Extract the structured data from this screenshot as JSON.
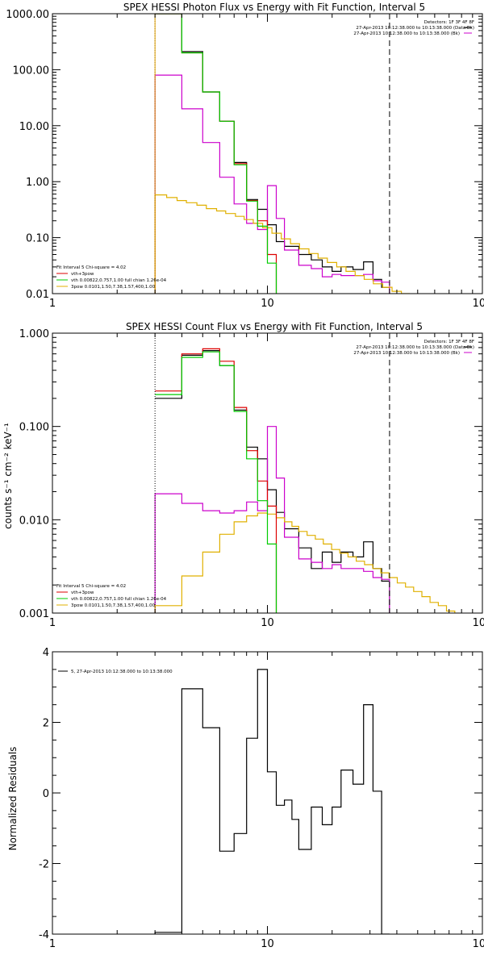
{
  "chart_data": [
    {
      "type": "line",
      "title": "SPEX HESSI Photon Flux vs Energy with Fit Function, Interval 5",
      "xscale": "log",
      "yscale": "log",
      "xlim": [
        1,
        100
      ],
      "ylim": [
        0.01,
        1000
      ],
      "x_tick_labels": [
        "1",
        "10",
        "100"
      ],
      "y_tick_labels": [
        "0.01",
        "0.10",
        "1.00",
        "10.00",
        "100.00",
        "1000.00"
      ],
      "ylabel": "",
      "xlabel": "",
      "vlines": [
        {
          "x": 3.0,
          "style": "dotted",
          "color": "#000000"
        },
        {
          "x": 3.0,
          "style": "solid",
          "color": "#e0a000"
        },
        {
          "x": 37,
          "style": "dashed",
          "color": "#000000"
        }
      ],
      "legend_topright": {
        "position": "top-right",
        "lines": [
          "Detectors: 1F 3F 4F 8F",
          "27-Apr-2013 10:12:38.000 to 10:13:38.000 (Data-Bk)",
          "27-Apr-2013 10:12:38.000 to 10:13:38.000 (Bk)"
        ],
        "colors": [
          "",
          "#000000",
          "#cc00cc"
        ]
      },
      "legend_bottomleft": {
        "position": "bottom-left",
        "lines": [
          "Fit Interval 5   Chi-square = 4.02",
          "vth+3pow",
          "vth 0.00822,0.757,1.00  full chian 1.26e-04",
          "3pow 0.0101,1.50,7.38,1.57,400,1.00"
        ],
        "colors": [
          "",
          "#dd0000",
          "#00cc00",
          "#e0b000"
        ]
      },
      "series": [
        {
          "id": "data",
          "color": "#000000",
          "drawStart": 1,
          "edges": [
            3,
            4,
            5,
            6,
            7,
            8,
            9,
            10,
            11,
            12,
            14,
            16,
            18,
            20,
            22,
            25,
            28,
            31,
            34,
            37
          ],
          "values": [
            1000,
            210,
            40,
            12,
            2.2,
            0.48,
            0.32,
            0.17,
            0.085,
            0.07,
            0.05,
            0.04,
            0.03,
            0.025,
            0.03,
            0.027,
            0.037,
            0.018,
            0.013
          ]
        },
        {
          "id": "pink",
          "color": "#cc00cc",
          "drawStart": 0,
          "edges": [
            3,
            4,
            5,
            6,
            7,
            8,
            9,
            10,
            11,
            12,
            14,
            16,
            18,
            20,
            22,
            25,
            28,
            31,
            34,
            37
          ],
          "values": [
            80,
            20,
            5,
            1.2,
            0.4,
            0.18,
            0.14,
            0.85,
            0.22,
            0.06,
            0.032,
            0.028,
            0.02,
            0.022,
            0.021,
            0.021,
            0.022,
            0.017,
            0.016
          ]
        },
        {
          "id": "yellow",
          "color": "#e0b000",
          "drawStart": 0,
          "edges": [
            3,
            3.4,
            3.8,
            4.2,
            4.7,
            5.2,
            5.8,
            6.4,
            7.1,
            7.8,
            8.6,
            9.5,
            10.5,
            11.6,
            12.8,
            14.1,
            15.6,
            17.2,
            19,
            21,
            23.2,
            25.6,
            28.2,
            31.1,
            34.4,
            38,
            42,
            46
          ],
          "values": [
            0.58,
            0.52,
            0.46,
            0.42,
            0.38,
            0.33,
            0.3,
            0.27,
            0.24,
            0.21,
            0.18,
            0.15,
            0.12,
            0.095,
            0.078,
            0.063,
            0.052,
            0.043,
            0.036,
            0.03,
            0.025,
            0.021,
            0.018,
            0.015,
            0.013,
            0.011,
            0.01
          ]
        },
        {
          "id": "red",
          "color": "#dd0000",
          "drawStart": 1,
          "edges": [
            3,
            4,
            5,
            6,
            7,
            8,
            9,
            10,
            11
          ],
          "values": [
            1000,
            200,
            40,
            12,
            2.1,
            0.46,
            0.2,
            0.05
          ]
        },
        {
          "id": "green",
          "color": "#00cc00",
          "drawStart": 1,
          "edges": [
            3,
            4,
            5,
            6,
            7,
            8,
            9,
            10,
            11
          ],
          "values": [
            1000,
            200,
            40,
            12,
            2.0,
            0.45,
            0.16,
            0.035
          ]
        }
      ]
    },
    {
      "type": "line",
      "title": "SPEX HESSI Count Flux vs Energy with Fit Function, Interval 5",
      "xscale": "log",
      "yscale": "log",
      "xlim": [
        1,
        100
      ],
      "ylim": [
        0.001,
        1
      ],
      "x_tick_labels": [
        "1",
        "10",
        "100"
      ],
      "y_tick_labels": [
        "0.001",
        "0.010",
        "0.100",
        "1.000"
      ],
      "ylabel": "counts s⁻¹ cm⁻² keV⁻¹",
      "xlabel": "",
      "vlines": [
        {
          "x": 3.0,
          "style": "dotted",
          "color": "#000000"
        },
        {
          "x": 37,
          "style": "dashed",
          "color": "#000000"
        }
      ],
      "legend_topright": {
        "position": "top-right",
        "lines": [
          "Detectors: 1F 3F 4F 8F",
          "27-Apr-2013 10:12:38.000 to 10:13:38.000 (Data-Bk)",
          "27-Apr-2013 10:12:38.000 to 10:13:38.000 (Bk)"
        ],
        "colors": [
          "",
          "#000000",
          "#cc00cc"
        ]
      },
      "legend_bottomleft": {
        "position": "bottom-left",
        "lines": [
          "Fit Interval 5   Chi-square = 4.02",
          "vth+3pow",
          "vth 0.00822,0.757,1.00  full chian 1.26e-04",
          "3pow 0.0101,1.50,7.38,1.57,400,1.00"
        ],
        "colors": [
          "",
          "#dd0000",
          "#00cc00",
          "#e0b000"
        ]
      },
      "series": [
        {
          "id": "data",
          "color": "#000000",
          "drawStart": 1,
          "edges": [
            3,
            4,
            5,
            6,
            7,
            8,
            9,
            10,
            11,
            12,
            14,
            16,
            18,
            20,
            22,
            25,
            28,
            31,
            34,
            37
          ],
          "values": [
            0.2,
            0.58,
            0.65,
            0.45,
            0.15,
            0.06,
            0.045,
            0.021,
            0.012,
            0.008,
            0.005,
            0.003,
            0.0045,
            0.0035,
            0.0045,
            0.004,
            0.0058,
            0.003,
            0.0022
          ]
        },
        {
          "id": "pink",
          "color": "#cc00cc",
          "drawStart": 0,
          "edges": [
            3,
            4,
            5,
            6,
            7,
            8,
            9,
            10,
            11,
            12,
            14,
            16,
            18,
            20,
            22,
            25,
            28,
            31,
            34,
            37
          ],
          "values": [
            0.019,
            0.015,
            0.0125,
            0.0118,
            0.0125,
            0.0155,
            0.0125,
            0.1,
            0.028,
            0.0065,
            0.0038,
            0.0035,
            0.003,
            0.0033,
            0.003,
            0.003,
            0.0028,
            0.0024,
            0.0023
          ]
        },
        {
          "id": "yellow",
          "color": "#e0b000",
          "drawStart": 0,
          "edges": [
            3,
            4,
            5,
            6,
            7,
            8,
            9,
            10,
            11,
            12,
            13,
            14,
            15.3,
            16.7,
            18.2,
            19.9,
            21.7,
            23.7,
            25.9,
            28.3,
            30.9,
            33.7,
            36.8,
            40.2,
            43.9,
            47.9,
            52.3,
            57.1,
            62.4,
            68.1,
            74.4
          ],
          "values": [
            0.0012,
            0.0025,
            0.0045,
            0.007,
            0.0095,
            0.011,
            0.0118,
            0.0115,
            0.0105,
            0.0095,
            0.0085,
            0.0075,
            0.0068,
            0.0062,
            0.0055,
            0.0048,
            0.0044,
            0.004,
            0.0036,
            0.0033,
            0.003,
            0.0027,
            0.0024,
            0.0021,
            0.0019,
            0.0017,
            0.0015,
            0.0013,
            0.0012,
            0.00105
          ]
        },
        {
          "id": "red",
          "color": "#dd0000",
          "drawStart": 1,
          "edges": [
            3,
            4,
            5,
            6,
            7,
            8,
            9,
            10,
            11
          ],
          "values": [
            0.24,
            0.6,
            0.68,
            0.5,
            0.16,
            0.055,
            0.026,
            0.014
          ]
        },
        {
          "id": "green",
          "color": "#00cc00",
          "drawStart": 1,
          "edges": [
            3,
            4,
            5,
            6,
            7,
            8,
            9,
            10,
            11
          ],
          "values": [
            0.22,
            0.55,
            0.63,
            0.45,
            0.145,
            0.045,
            0.016,
            0.0055
          ]
        }
      ]
    },
    {
      "type": "line",
      "title": "",
      "xscale": "log",
      "yscale": "linear",
      "xlim": [
        1,
        100
      ],
      "ylim": [
        -4,
        4
      ],
      "x_tick_labels": [
        "1",
        "10",
        "100"
      ],
      "y_tick_labels": [
        "-4",
        "-2",
        "0",
        "2",
        "4"
      ],
      "ylabel": "Normalized Residuals",
      "xlabel": "",
      "vlines": [],
      "legend_topleft": {
        "position": "top-left",
        "lines": [
          "5, 27-Apr-2013 10:12:38.000 to 10:13:38.000"
        ],
        "colors": [
          "#000000"
        ]
      },
      "series": [
        {
          "id": "residuals",
          "color": "#000000",
          "drawStart": 0,
          "edges": [
            3,
            4,
            5,
            6,
            7,
            8,
            9,
            10,
            11,
            12,
            13,
            14,
            16,
            18,
            20,
            22,
            25,
            28,
            31,
            34,
            37
          ],
          "values": [
            -3.95,
            2.95,
            1.85,
            -1.65,
            -1.15,
            1.55,
            3.5,
            0.6,
            -0.35,
            -0.2,
            -0.75,
            -1.6,
            -0.4,
            -0.9,
            -0.4,
            0.65,
            0.25,
            2.5,
            0.05,
            -4.0
          ]
        }
      ]
    }
  ]
}
